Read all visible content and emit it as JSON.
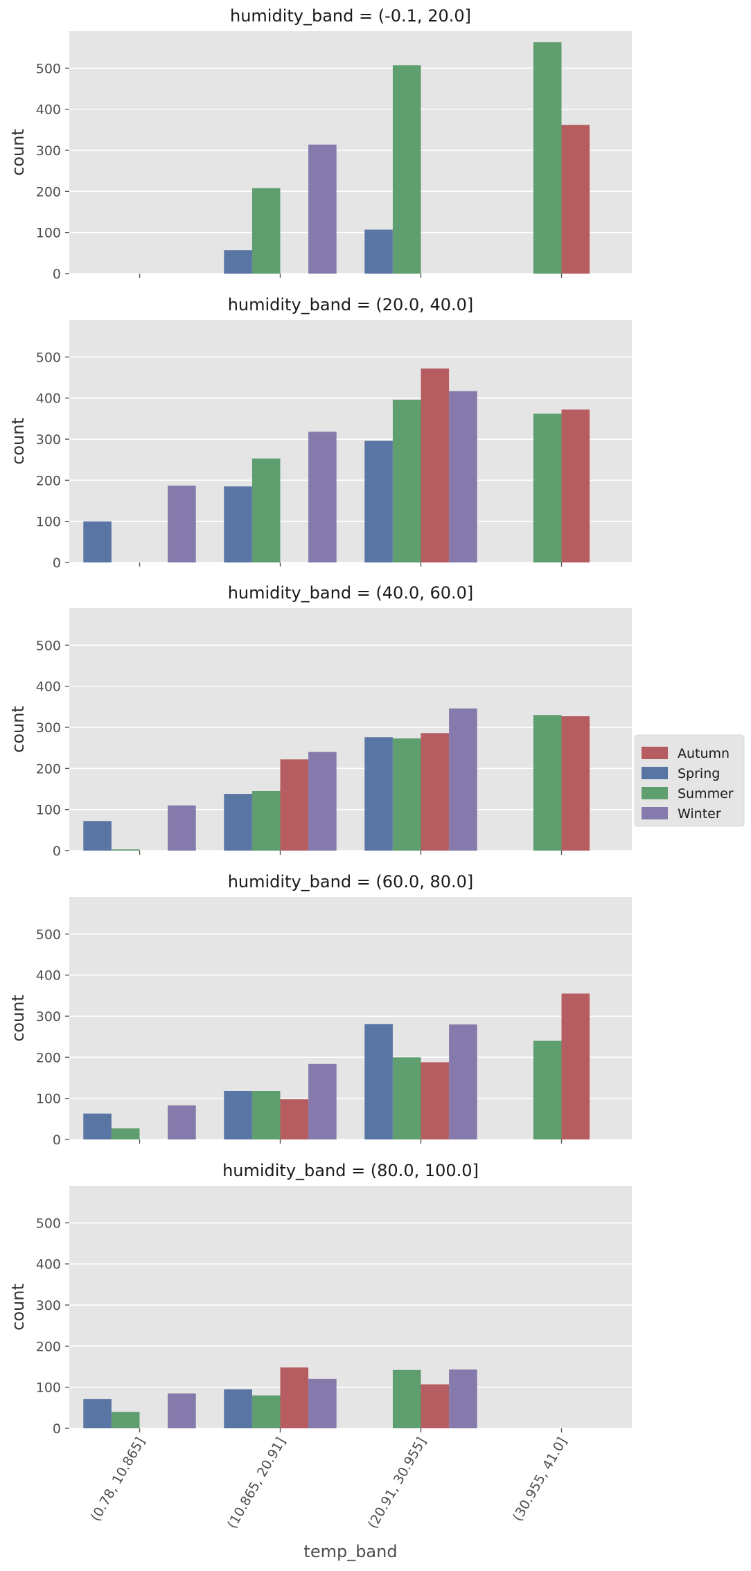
{
  "chart_data": {
    "type": "bar",
    "facet_variable": "humidity_band",
    "xlabel": "temp_band",
    "ylabel": "count",
    "ylim": [
      0,
      590
    ],
    "yticks": [
      0,
      100,
      200,
      300,
      400,
      500
    ],
    "grid": true,
    "categories": [
      "(0.78, 10.865]",
      "(10.865, 20.91]",
      "(20.91, 30.955]",
      "(30.955, 41.0]"
    ],
    "hue_order": [
      "Spring",
      "Summer",
      "Autumn",
      "Winter"
    ],
    "legend": {
      "placement": "right",
      "entries": [
        "Autumn",
        "Spring",
        "Summer",
        "Winter"
      ]
    },
    "colors": {
      "Spring": "#5975a4",
      "Summer": "#5f9e6e",
      "Autumn": "#b55d60",
      "Winter": "#857aab",
      "panel_bg": "#e5e5e5",
      "grid": "#ffffff"
    },
    "facets": [
      {
        "title": "humidity_band = (-0.1, 20.0]",
        "series": [
          {
            "name": "Spring",
            "values": [
              0,
              57,
              107,
              0
            ]
          },
          {
            "name": "Summer",
            "values": [
              0,
              208,
              507,
              563
            ]
          },
          {
            "name": "Autumn",
            "values": [
              0,
              0,
              0,
              362
            ]
          },
          {
            "name": "Winter",
            "values": [
              0,
              314,
              0,
              0
            ]
          }
        ]
      },
      {
        "title": "humidity_band = (20.0, 40.0]",
        "series": [
          {
            "name": "Spring",
            "values": [
              100,
              185,
              296,
              0
            ]
          },
          {
            "name": "Summer",
            "values": [
              0,
              253,
              396,
              362
            ]
          },
          {
            "name": "Autumn",
            "values": [
              0,
              0,
              472,
              372
            ]
          },
          {
            "name": "Winter",
            "values": [
              187,
              318,
              417,
              0
            ]
          }
        ]
      },
      {
        "title": "humidity_band = (40.0, 60.0]",
        "series": [
          {
            "name": "Spring",
            "values": [
              72,
              138,
              276,
              0
            ]
          },
          {
            "name": "Summer",
            "values": [
              3,
              145,
              273,
              330
            ]
          },
          {
            "name": "Autumn",
            "values": [
              0,
              222,
              286,
              327
            ]
          },
          {
            "name": "Winter",
            "values": [
              110,
              240,
              346,
              0
            ]
          }
        ]
      },
      {
        "title": "humidity_band = (60.0, 80.0]",
        "series": [
          {
            "name": "Spring",
            "values": [
              63,
              118,
              281,
              0
            ]
          },
          {
            "name": "Summer",
            "values": [
              27,
              118,
              200,
              240
            ]
          },
          {
            "name": "Autumn",
            "values": [
              0,
              98,
              188,
              355
            ]
          },
          {
            "name": "Winter",
            "values": [
              83,
              184,
              280,
              0
            ]
          }
        ]
      },
      {
        "title": "humidity_band = (80.0, 100.0]",
        "series": [
          {
            "name": "Spring",
            "values": [
              71,
              95,
              0,
              0
            ]
          },
          {
            "name": "Summer",
            "values": [
              40,
              80,
              142,
              0
            ]
          },
          {
            "name": "Autumn",
            "values": [
              0,
              148,
              107,
              0
            ]
          },
          {
            "name": "Winter",
            "values": [
              85,
              120,
              143,
              0
            ]
          }
        ]
      }
    ]
  }
}
